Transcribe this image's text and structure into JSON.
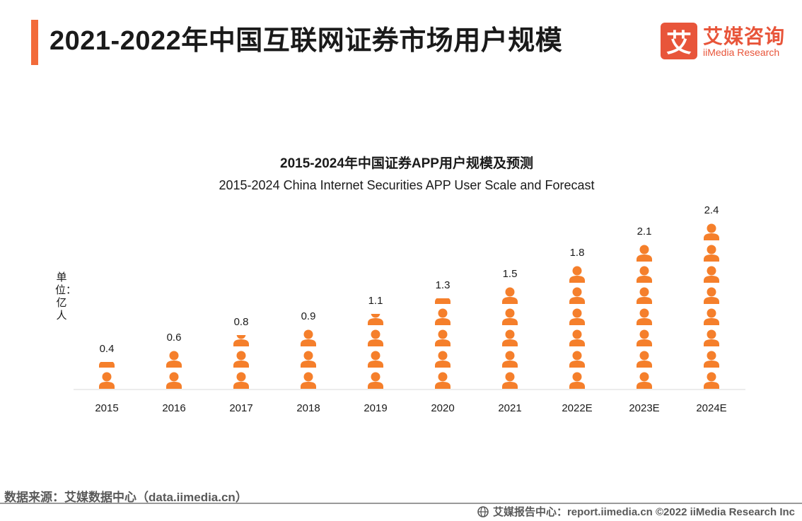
{
  "header": {
    "title": "2021-2022年中国互联网证券市场用户规模",
    "logo_mark": "艾",
    "logo_cn": "艾媒咨询",
    "logo_en": "iiMedia Research"
  },
  "colors": {
    "accent": "#f26b3a",
    "person": "#f57f2b",
    "axis": "#d9d9d9"
  },
  "chart_data": {
    "type": "bar",
    "title": "2015-2024年中国证券APP用户规模及预测",
    "subtitle": "2015-2024 China Internet Securities APP User Scale and Forecast",
    "ylabel": "单位：亿人",
    "categories": [
      "2015",
      "2016",
      "2017",
      "2018",
      "2019",
      "2020",
      "2021",
      "2022E",
      "2023E",
      "2024E"
    ],
    "values": [
      0.4,
      0.6,
      0.8,
      0.9,
      1.1,
      1.3,
      1.5,
      1.8,
      2.1,
      2.4
    ],
    "value_labels": [
      "0.4",
      "0.6",
      "0.8",
      "0.9",
      "1.1",
      "1.3",
      "1.5",
      "1.8",
      "2.1",
      "2.4"
    ],
    "unit_per_icon": 0.3,
    "ylim": [
      0,
      2.4
    ]
  },
  "footer": {
    "source": "数据来源：艾媒数据中心（data.iimedia.cn）",
    "credit": "艾媒报告中心：report.iimedia.cn  ©2022  iiMedia Research  Inc"
  }
}
